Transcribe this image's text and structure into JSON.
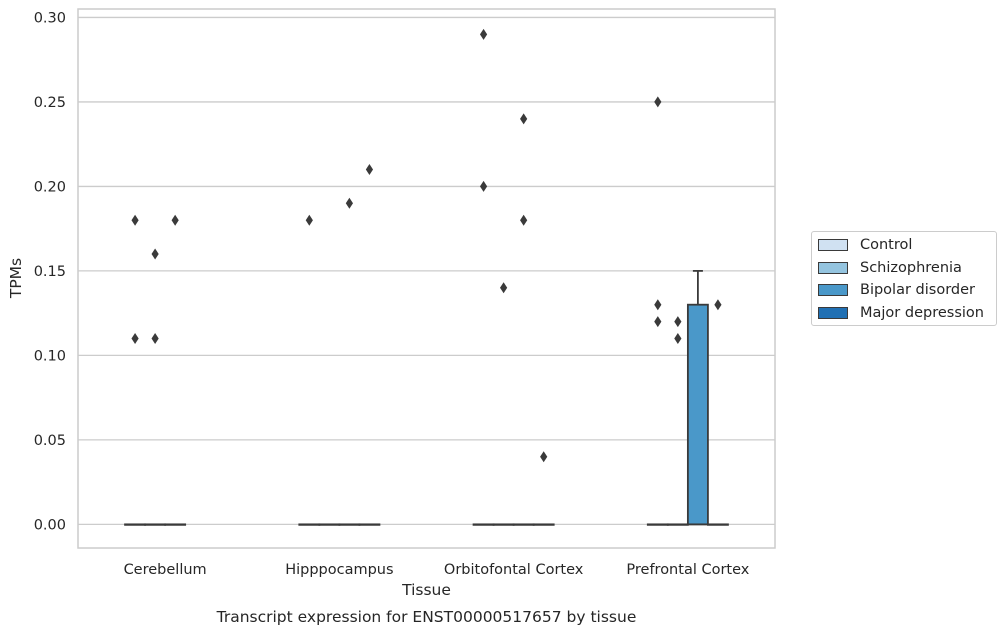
{
  "chart_data": {
    "type": "box",
    "title": "Transcript expression for ENST00000517657 by tissue",
    "xlabel": "Tissue",
    "ylabel": "TPMs",
    "ylim": [
      -0.014,
      0.305
    ],
    "yticks": [
      "0.00",
      "0.05",
      "0.10",
      "0.15",
      "0.20",
      "0.25",
      "0.30"
    ],
    "ytick_values": [
      0,
      0.05,
      0.1,
      0.15,
      0.2,
      0.25,
      0.3
    ],
    "grid": true,
    "legend_placement": "right, outside plot",
    "categories": [
      "Cerebellum",
      "Hipppocampus",
      "Orbitofontal Cortex",
      "Prefrontal Cortex"
    ],
    "series": [
      {
        "name": "Control",
        "color": "#d0e1f2",
        "boxes": [
          {
            "q1": 0,
            "median": 0,
            "q3": 0,
            "whisker_low": 0,
            "whisker_high": 0,
            "outliers": [
              0.18,
              0.11
            ]
          },
          {
            "q1": 0,
            "median": 0,
            "q3": 0,
            "whisker_low": 0,
            "whisker_high": 0,
            "outliers": [
              0.18
            ]
          },
          {
            "q1": 0,
            "median": 0,
            "q3": 0,
            "whisker_low": 0,
            "whisker_high": 0,
            "outliers": [
              0.29,
              0.2
            ]
          },
          {
            "q1": 0,
            "median": 0,
            "q3": 0,
            "whisker_low": 0,
            "whisker_high": 0,
            "outliers": [
              0.25,
              0.13,
              0.12
            ]
          }
        ]
      },
      {
        "name": "Schizophrenia",
        "color": "#94c4df",
        "boxes": [
          {
            "q1": 0,
            "median": 0,
            "q3": 0,
            "whisker_low": 0,
            "whisker_high": 0,
            "outliers": [
              0.16,
              0.11
            ]
          },
          {
            "q1": 0,
            "median": 0,
            "q3": 0,
            "whisker_low": 0,
            "whisker_high": 0,
            "outliers": []
          },
          {
            "q1": 0,
            "median": 0,
            "q3": 0,
            "whisker_low": 0,
            "whisker_high": 0,
            "outliers": [
              0.14
            ]
          },
          {
            "q1": 0,
            "median": 0,
            "q3": 0,
            "whisker_low": 0,
            "whisker_high": 0,
            "outliers": [
              0.12,
              0.11
            ]
          }
        ]
      },
      {
        "name": "Bipolar disorder",
        "color": "#4a98c9",
        "boxes": [
          {
            "q1": 0,
            "median": 0,
            "q3": 0,
            "whisker_low": 0,
            "whisker_high": 0,
            "outliers": [
              0.18
            ]
          },
          {
            "q1": 0,
            "median": 0,
            "q3": 0,
            "whisker_low": 0,
            "whisker_high": 0,
            "outliers": [
              0.19
            ]
          },
          {
            "q1": 0,
            "median": 0,
            "q3": 0,
            "whisker_low": 0,
            "whisker_high": 0,
            "outliers": [
              0.24,
              0.18
            ]
          },
          {
            "q1": 0,
            "median": 0,
            "q3": 0.13,
            "whisker_low": 0,
            "whisker_high": 0.15,
            "outliers": []
          }
        ]
      },
      {
        "name": "Major depression",
        "color": "#2070b4",
        "boxes": [
          null,
          {
            "q1": 0,
            "median": 0,
            "q3": 0,
            "whisker_low": 0,
            "whisker_high": 0,
            "outliers": [
              0.21
            ]
          },
          {
            "q1": 0,
            "median": 0,
            "q3": 0,
            "whisker_low": 0,
            "whisker_high": 0,
            "outliers": [
              0.04
            ]
          },
          {
            "q1": 0,
            "median": 0,
            "q3": 0,
            "whisker_low": 0,
            "whisker_high": 0,
            "outliers": [
              0.13
            ]
          }
        ]
      }
    ]
  }
}
